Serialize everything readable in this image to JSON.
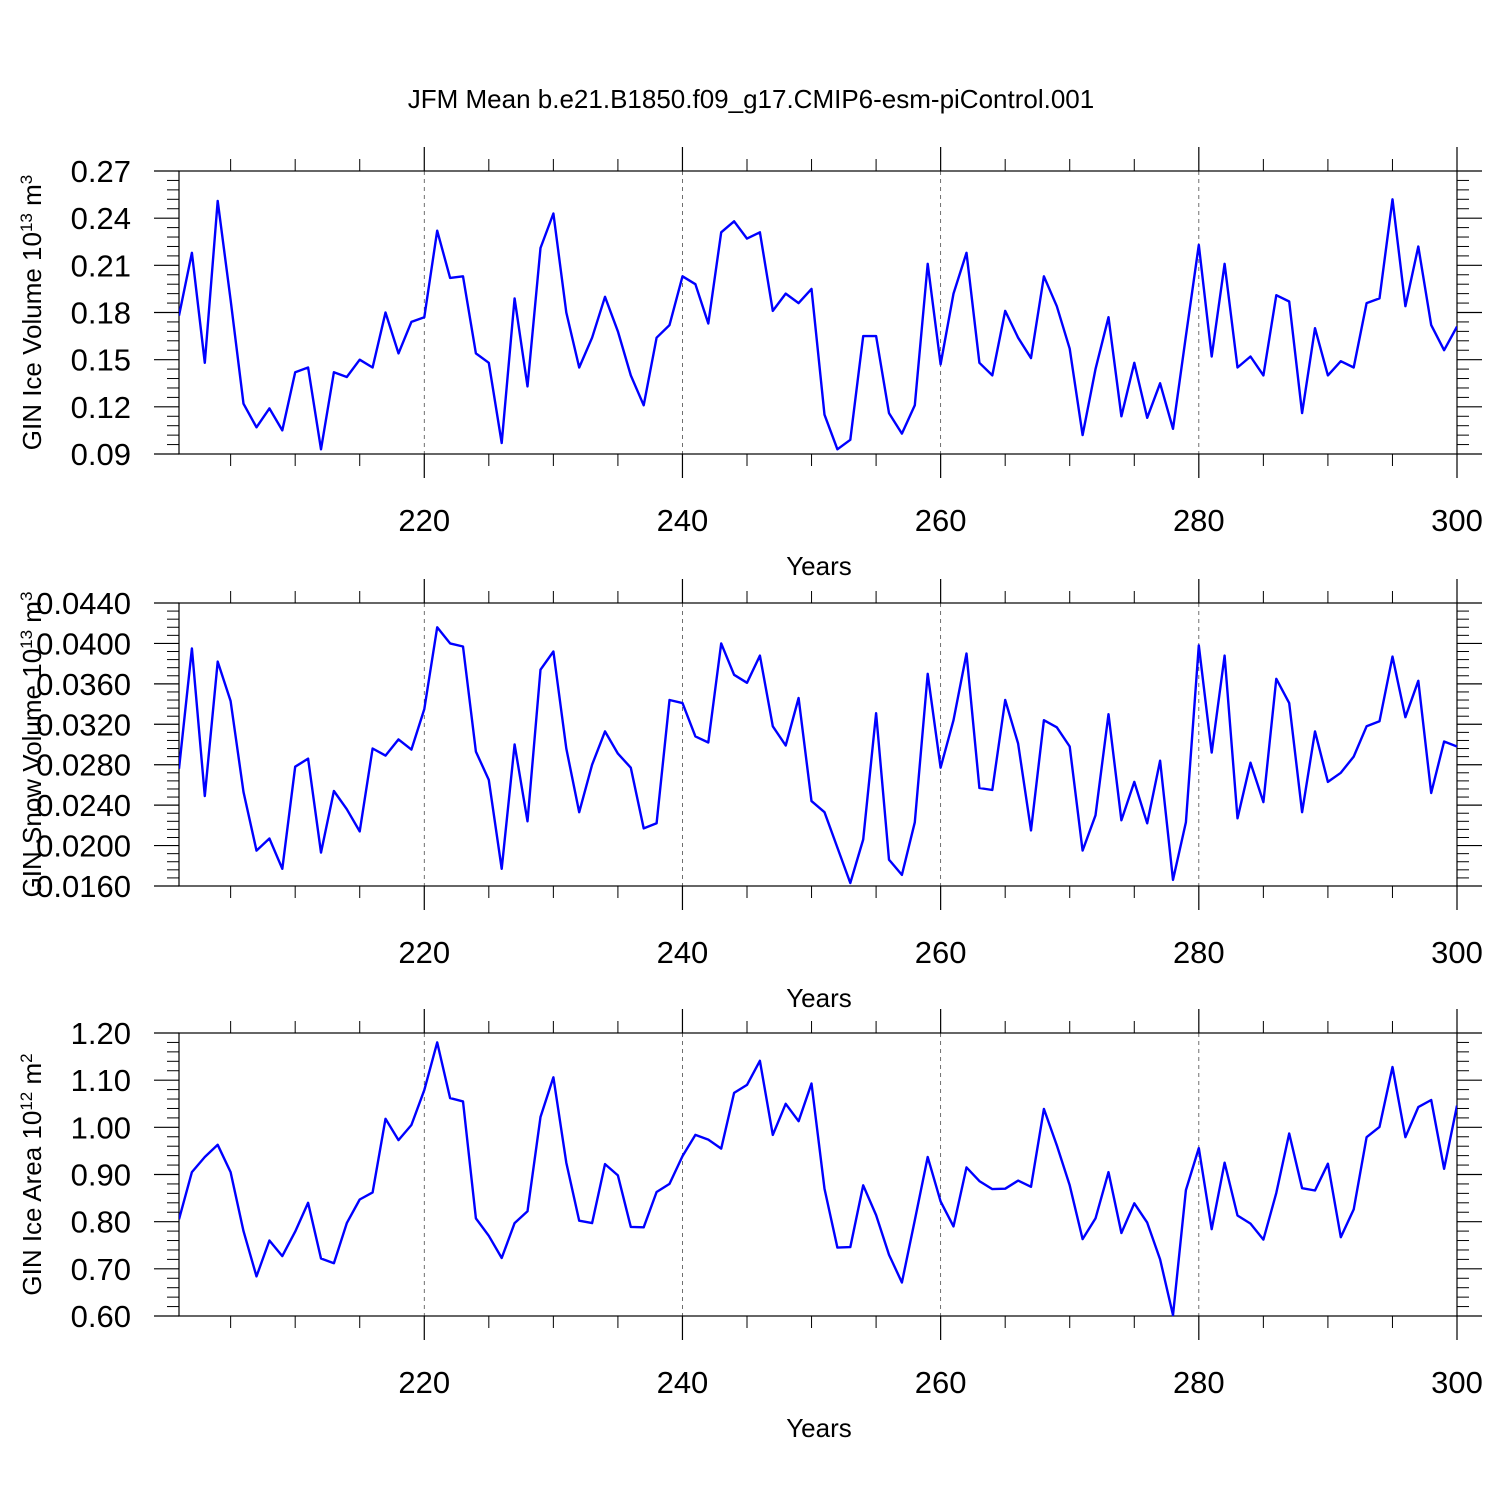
{
  "title": "JFM Mean b.e21.B1850.f09_g17.CMIP6-esm-piControl.001",
  "colors": {
    "line": "#0000ff",
    "axis": "#000000",
    "grid": "#000000"
  },
  "chart_data": [
    {
      "type": "line",
      "xlabel": "Years",
      "ylabel": "GIN Ice Volume 10",
      "ylabel_exp": "13",
      "ylabel_unit": " m",
      "ylabel_unit_exp": "3",
      "xlim": [
        201,
        300
      ],
      "ylim": [
        0.09,
        0.27
      ],
      "x_ticks": [
        220,
        240,
        260,
        280,
        300
      ],
      "y_ticks": [
        "0.09",
        "0.12",
        "0.15",
        "0.18",
        "0.21",
        "0.24",
        "0.27"
      ],
      "x_start": 201,
      "values": [
        0.178,
        0.218,
        0.148,
        0.251,
        0.188,
        0.122,
        0.107,
        0.119,
        0.105,
        0.142,
        0.145,
        0.093,
        0.142,
        0.139,
        0.15,
        0.145,
        0.18,
        0.154,
        0.174,
        0.177,
        0.232,
        0.202,
        0.203,
        0.154,
        0.148,
        0.097,
        0.189,
        0.133,
        0.221,
        0.243,
        0.18,
        0.145,
        0.164,
        0.19,
        0.168,
        0.14,
        0.121,
        0.164,
        0.172,
        0.203,
        0.198,
        0.173,
        0.231,
        0.238,
        0.227,
        0.231,
        0.181,
        0.192,
        0.186,
        0.195,
        0.115,
        0.093,
        0.099,
        0.165,
        0.165,
        0.116,
        0.103,
        0.121,
        0.211,
        0.147,
        0.192,
        0.218,
        0.148,
        0.14,
        0.181,
        0.164,
        0.151,
        0.203,
        0.184,
        0.157,
        0.102,
        0.144,
        0.177,
        0.114,
        0.148,
        0.113,
        0.135,
        0.106,
        0.165,
        0.223,
        0.152,
        0.211,
        0.145,
        0.152,
        0.14,
        0.191,
        0.187,
        0.116,
        0.17,
        0.14,
        0.149,
        0.145,
        0.186,
        0.189,
        0.252,
        0.184,
        0.222,
        0.172,
        0.156,
        0.171
      ]
    },
    {
      "type": "line",
      "xlabel": "Years",
      "ylabel": "GIN Snow Volume 10",
      "ylabel_exp": "13",
      "ylabel_unit": " m",
      "ylabel_unit_exp": "3",
      "xlim": [
        201,
        300
      ],
      "ylim": [
        0.016,
        0.044
      ],
      "x_ticks": [
        220,
        240,
        260,
        280,
        300
      ],
      "y_ticks": [
        "0.0160",
        "0.0200",
        "0.0240",
        "0.0280",
        "0.0320",
        "0.0360",
        "0.0400",
        "0.0440"
      ],
      "x_start": 201,
      "values": [
        0.0276,
        0.0395,
        0.0249,
        0.0382,
        0.0343,
        0.0253,
        0.0195,
        0.0207,
        0.0177,
        0.0278,
        0.0286,
        0.0193,
        0.0254,
        0.0236,
        0.0214,
        0.0296,
        0.0289,
        0.0305,
        0.0295,
        0.0335,
        0.0416,
        0.04,
        0.0397,
        0.0293,
        0.0265,
        0.0177,
        0.03,
        0.0224,
        0.0374,
        0.0392,
        0.0296,
        0.0233,
        0.028,
        0.0313,
        0.0291,
        0.0277,
        0.0217,
        0.0222,
        0.0344,
        0.0341,
        0.0308,
        0.0302,
        0.04,
        0.0369,
        0.0361,
        0.0388,
        0.0318,
        0.0299,
        0.0346,
        0.0244,
        0.0233,
        0.0198,
        0.0163,
        0.0206,
        0.0331,
        0.0186,
        0.0171,
        0.0223,
        0.037,
        0.0277,
        0.0324,
        0.039,
        0.0257,
        0.0255,
        0.0344,
        0.0301,
        0.0215,
        0.0324,
        0.0317,
        0.0298,
        0.0195,
        0.023,
        0.033,
        0.0225,
        0.0263,
        0.0222,
        0.0284,
        0.0166,
        0.0223,
        0.0398,
        0.0292,
        0.0388,
        0.0227,
        0.0282,
        0.0243,
        0.0365,
        0.0341,
        0.0233,
        0.0313,
        0.0263,
        0.0272,
        0.0288,
        0.0318,
        0.0323,
        0.0387,
        0.0327,
        0.0363,
        0.0252,
        0.0303,
        0.0298
      ]
    },
    {
      "type": "line",
      "xlabel": "Years",
      "ylabel": "GIN Ice Area 10",
      "ylabel_exp": "12",
      "ylabel_unit": " m",
      "ylabel_unit_exp": "2",
      "xlim": [
        201,
        300
      ],
      "ylim": [
        0.6,
        1.2
      ],
      "x_ticks": [
        220,
        240,
        260,
        280,
        300
      ],
      "y_ticks": [
        "0.60",
        "0.70",
        "0.80",
        "0.90",
        "1.00",
        "1.10",
        "1.20"
      ],
      "x_start": 201,
      "values": [
        0.805,
        0.905,
        0.937,
        0.963,
        0.905,
        0.78,
        0.684,
        0.76,
        0.727,
        0.779,
        0.84,
        0.722,
        0.712,
        0.797,
        0.847,
        0.862,
        1.018,
        0.973,
        1.005,
        1.079,
        1.18,
        1.062,
        1.055,
        0.807,
        0.77,
        0.723,
        0.797,
        0.822,
        1.022,
        1.106,
        0.925,
        0.802,
        0.797,
        0.922,
        0.898,
        0.789,
        0.788,
        0.863,
        0.88,
        0.939,
        0.984,
        0.974,
        0.955,
        1.073,
        1.09,
        1.141,
        0.984,
        1.05,
        1.013,
        1.093,
        0.87,
        0.745,
        0.746,
        0.877,
        0.814,
        0.73,
        0.671,
        0.803,
        0.937,
        0.843,
        0.79,
        0.915,
        0.886,
        0.869,
        0.87,
        0.887,
        0.874,
        1.039,
        0.962,
        0.877,
        0.763,
        0.807,
        0.905,
        0.776,
        0.839,
        0.798,
        0.72,
        0.602,
        0.867,
        0.956,
        0.784,
        0.925,
        0.813,
        0.796,
        0.762,
        0.861,
        0.987,
        0.871,
        0.866,
        0.923,
        0.767,
        0.826,
        0.979,
        1.001,
        1.128,
        0.979,
        1.043,
        1.058,
        0.912,
        1.046
      ]
    }
  ]
}
